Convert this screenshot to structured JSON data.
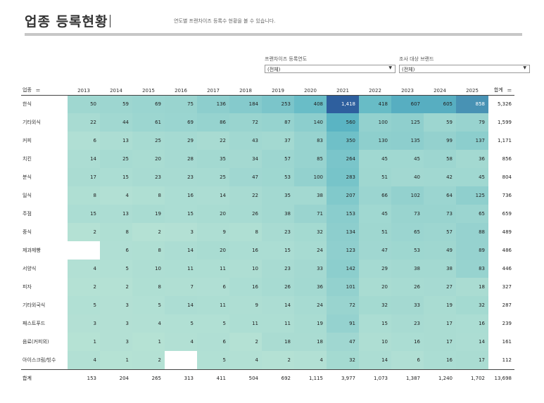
{
  "header": {
    "title": "업종 등록현황",
    "subtitle": "연도별 프랜차이즈 등록수 현황을 볼 수 있습니다."
  },
  "filters": [
    {
      "label": "프랜차이즈 등록연도",
      "value": "(전체)"
    },
    {
      "label": "조사 대상 브랜드",
      "value": "(전체)"
    }
  ],
  "table": {
    "corner_label": "업종",
    "total_label": "합계",
    "sort_icon": "sort-icon",
    "years": [
      "2013",
      "2014",
      "2015",
      "2016",
      "2017",
      "2018",
      "2019",
      "2020",
      "2021",
      "2022",
      "2023",
      "2024",
      "2025"
    ],
    "rows": [
      {
        "name": "한식",
        "values": [
          "50",
          "59",
          "69",
          "75",
          "136",
          "184",
          "253",
          "408",
          "1,418",
          "418",
          "607",
          "605",
          "858"
        ],
        "total": "5,326"
      },
      {
        "name": "기타외식",
        "values": [
          "22",
          "44",
          "61",
          "69",
          "86",
          "72",
          "87",
          "140",
          "560",
          "100",
          "125",
          "59",
          "79"
        ],
        "total": "1,599"
      },
      {
        "name": "커피",
        "values": [
          "6",
          "13",
          "25",
          "29",
          "22",
          "43",
          "37",
          "83",
          "350",
          "130",
          "135",
          "99",
          "137"
        ],
        "total": "1,171"
      },
      {
        "name": "치킨",
        "values": [
          "14",
          "25",
          "20",
          "28",
          "35",
          "34",
          "57",
          "85",
          "264",
          "45",
          "45",
          "58",
          "36"
        ],
        "total": "856"
      },
      {
        "name": "분식",
        "values": [
          "17",
          "15",
          "23",
          "23",
          "25",
          "47",
          "53",
          "100",
          "283",
          "51",
          "40",
          "42",
          "45"
        ],
        "total": "804"
      },
      {
        "name": "일식",
        "values": [
          "8",
          "4",
          "8",
          "16",
          "14",
          "22",
          "35",
          "38",
          "207",
          "66",
          "102",
          "64",
          "125"
        ],
        "total": "736"
      },
      {
        "name": "주점",
        "values": [
          "15",
          "13",
          "19",
          "15",
          "20",
          "26",
          "38",
          "71",
          "153",
          "45",
          "73",
          "73",
          "65"
        ],
        "total": "659"
      },
      {
        "name": "중식",
        "values": [
          "2",
          "8",
          "2",
          "3",
          "9",
          "8",
          "23",
          "32",
          "134",
          "51",
          "65",
          "57",
          "88"
        ],
        "total": "489"
      },
      {
        "name": "제과제빵",
        "values": [
          "",
          "6",
          "8",
          "14",
          "20",
          "16",
          "15",
          "24",
          "123",
          "47",
          "53",
          "49",
          "89"
        ],
        "total": "486"
      },
      {
        "name": "서양식",
        "values": [
          "4",
          "5",
          "10",
          "11",
          "11",
          "10",
          "23",
          "33",
          "142",
          "29",
          "38",
          "38",
          "83"
        ],
        "total": "446"
      },
      {
        "name": "피자",
        "values": [
          "2",
          "2",
          "8",
          "7",
          "6",
          "16",
          "26",
          "36",
          "101",
          "20",
          "26",
          "27",
          "18"
        ],
        "total": "327"
      },
      {
        "name": "기타외국식",
        "values": [
          "5",
          "3",
          "5",
          "14",
          "11",
          "9",
          "14",
          "24",
          "72",
          "32",
          "33",
          "19",
          "32"
        ],
        "total": "287"
      },
      {
        "name": "패스트푸드",
        "values": [
          "3",
          "3",
          "4",
          "5",
          "5",
          "11",
          "11",
          "19",
          "91",
          "15",
          "23",
          "17",
          "16"
        ],
        "total": "239"
      },
      {
        "name": "음료(커피외)",
        "values": [
          "1",
          "3",
          "1",
          "4",
          "6",
          "2",
          "18",
          "18",
          "47",
          "10",
          "16",
          "17",
          "14"
        ],
        "total": "161"
      },
      {
        "name": "아이스크림/빙수",
        "values": [
          "4",
          "1",
          "2",
          "",
          "5",
          "4",
          "2",
          "4",
          "32",
          "14",
          "6",
          "16",
          "17"
        ],
        "total": "112"
      }
    ],
    "footer": {
      "label": "합계",
      "values": [
        "153",
        "204",
        "265",
        "313",
        "411",
        "504",
        "692",
        "1,115",
        "3,977",
        "1,073",
        "1,387",
        "1,240",
        "1,702"
      ],
      "total": "13,698"
    },
    "colors": {
      "low": "#b8e3d5",
      "mid": "#5bb6c4",
      "high": "#2e5f9e",
      "empty": "#ffffff"
    }
  }
}
